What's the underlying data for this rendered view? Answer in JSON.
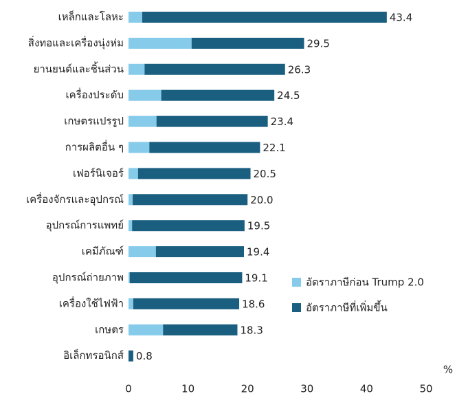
{
  "chart_data": {
    "type": "stacked-barh",
    "categories": [
      "เหล็กและโลหะ",
      "สิ่งทอและเครื่องนุ่งห่ม",
      "ยานยนต์และชิ้นส่วน",
      "เครื่องประดับ",
      "เกษตรแปรรูป",
      "การผลิตอื่น ๆ",
      "เฟอร์นิเจอร์",
      "เครื่องจักรและอุปกรณ์",
      "อุปกรณ์การแพทย์",
      "เคมีภัณฑ์",
      "อุปกรณ์ถ่ายภาพ",
      "เครื่องใช้ไฟฟ้า",
      "เกษตร",
      "อิเล็กทรอนิกส์"
    ],
    "series": [
      {
        "name": "อัตราภาษีก่อน Trump 2.0",
        "color": "#87cbea",
        "values": [
          2.3,
          10.6,
          2.7,
          5.5,
          4.7,
          3.5,
          1.6,
          0.7,
          0.6,
          4.6,
          0.2,
          0.8,
          5.8,
          0
        ]
      },
      {
        "name": "อัตราภาษีที่เพิ่มขึ้น",
        "color": "#1a5e80",
        "values": [
          41.1,
          18.9,
          23.6,
          19.0,
          18.7,
          18.6,
          18.9,
          19.3,
          18.9,
          14.8,
          18.9,
          17.8,
          12.5,
          0.8
        ]
      }
    ],
    "total_labels": [
      "43.4",
      "29.5",
      "26.3",
      "24.5",
      "23.4",
      "22.1",
      "20.5",
      "20.0",
      "19.5",
      "19.4",
      "19.1",
      "18.6",
      "18.3",
      "0.8"
    ],
    "xlim": [
      0,
      50
    ],
    "xticks": [
      0,
      10,
      20,
      30,
      40,
      50
    ],
    "x_unit": "%"
  }
}
